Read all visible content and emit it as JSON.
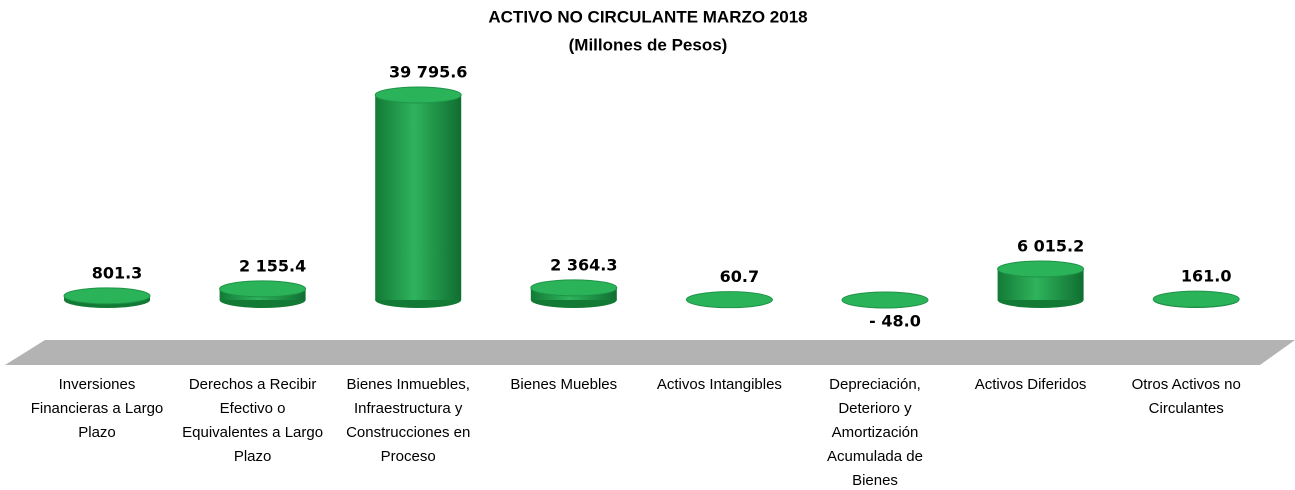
{
  "chart_data": {
    "type": "bar",
    "title": "ACTIVO NO CIRCULANTE  MARZO 2018",
    "subtitle": "(Millones de Pesos)",
    "categories": [
      "Inversiones Financieras a Largo Plazo",
      "Derechos a Recibir Efectivo o Equivalentes a Largo Plazo",
      "Bienes Inmuebles, Infraestructura y Construcciones en Proceso",
      "Bienes Muebles",
      "Activos Intangibles",
      "Depreciación, Deterioro y Amortización Acumulada de Bienes",
      "Activos Diferidos",
      "Otros Activos no Circulantes"
    ],
    "values": [
      801.3,
      2155.4,
      39795.6,
      2364.3,
      60.7,
      -48.0,
      6015.2,
      161.0
    ],
    "value_labels": [
      "801.3",
      "2 155.4",
      "39 795.6",
      "2 364.3",
      "60.7",
      "- 48.0",
      "6 015.2",
      "161.0"
    ],
    "color": "#1f9a4a"
  }
}
